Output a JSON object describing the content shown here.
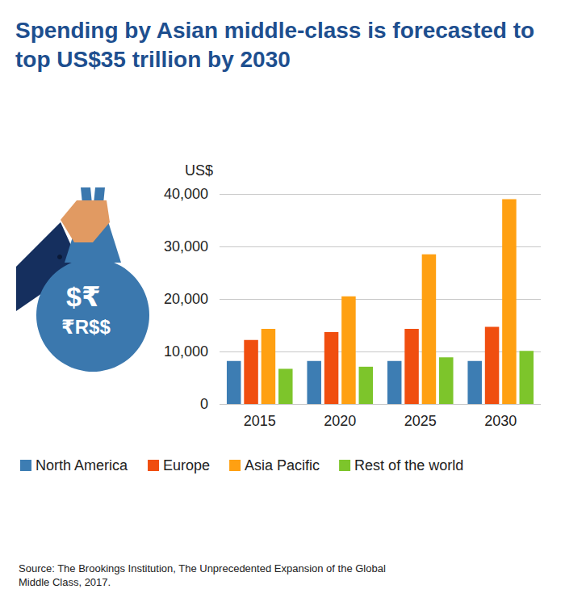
{
  "chart_data": {
    "type": "bar",
    "title": "Spending by Asian middle-class is forecasted to top US$35 trillion by 2030",
    "y_label": "US$",
    "categories": [
      "2015",
      "2020",
      "2025",
      "2030"
    ],
    "series": [
      {
        "name": "North America",
        "color": "#3d7db3",
        "values": [
          8200,
          8200,
          8200,
          8200
        ]
      },
      {
        "name": "Europe",
        "color": "#f04e0f",
        "values": [
          12200,
          13700,
          14300,
          14700
        ]
      },
      {
        "name": "Asia Pacific",
        "color": "#ffa012",
        "values": [
          14300,
          20500,
          28500,
          39000
        ]
      },
      {
        "name": "Rest of the world",
        "color": "#7dc52b",
        "values": [
          6700,
          7100,
          8900,
          10100
        ]
      }
    ],
    "ylim": [
      0,
      40000
    ],
    "yticks": [
      0,
      {
        "value": 10000,
        "label": "10,000"
      },
      {
        "value": 20000,
        "label": "20,000"
      },
      {
        "value": 30000,
        "label": "30,000"
      },
      {
        "value": 40000,
        "label": "40,000"
      }
    ],
    "grid": true,
    "legend": "bottom",
    "source": "Source: The Brookings Institution, The Unprecedented Expansion of the Global Middle Class, 2017."
  },
  "illustration": {
    "symbols": [
      "$₹",
      "₹R$$"
    ]
  }
}
